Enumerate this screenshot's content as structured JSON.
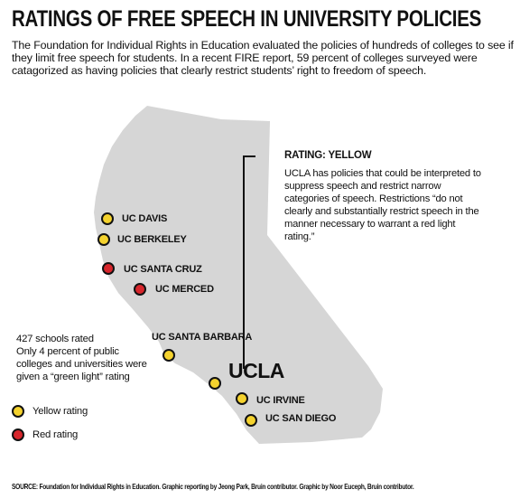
{
  "title": "RATINGS OF FREE SPEECH IN UNIVERSITY POLICIES",
  "intro": "The Foundation for Individual Rights in Education evaluated the policies of hundreds of colleges to see if they limit free speech for students. In a recent FIRE report, 59 percent of colleges surveyed were catagorized as having policies that clearly restrict students’ right to freedom of speech.",
  "colors": {
    "yellow": "#f4d22e",
    "red": "#d7262c",
    "state_fill": "#d6d6d6",
    "outline": "#111111"
  },
  "campuses": [
    {
      "id": "uc-davis",
      "label": "UC DAVIS",
      "rating": "yellow"
    },
    {
      "id": "uc-berkeley",
      "label": "UC BERKELEY",
      "rating": "yellow"
    },
    {
      "id": "uc-santa-cruz",
      "label": "UC SANTA CRUZ",
      "rating": "red"
    },
    {
      "id": "uc-merced",
      "label": "UC MERCED",
      "rating": "red"
    },
    {
      "id": "uc-santa-barbara",
      "label": "UC SANTA BARBARA",
      "rating": "yellow"
    },
    {
      "id": "ucla",
      "label": "UCLA",
      "rating": "yellow"
    },
    {
      "id": "uc-irvine",
      "label": "UC IRVINE",
      "rating": "yellow"
    },
    {
      "id": "uc-san-diego",
      "label": "UC SAN DIEGO",
      "rating": "yellow"
    }
  ],
  "callout": {
    "heading": "RATING: YELLOW",
    "body": "UCLA has policies that could be interpreted to suppress speech and restrict narrow categories of speech. Restrictions “do not clearly and substantially restrict speech in the manner necessary to warrant a red light rating.”"
  },
  "stats": {
    "schools_rated": "427 schools rated",
    "green_light": "Only 4 percent of public colleges and universities were given a “green light” rating"
  },
  "legend": {
    "yellow_label": "Yellow rating",
    "red_label": "Red rating"
  },
  "source": "SOURCE: Foundation for Individual Rights in Education. Graphic reporting by Jeong Park, Bruin contributor. Graphic by Noor Euceph, Bruin contributor."
}
